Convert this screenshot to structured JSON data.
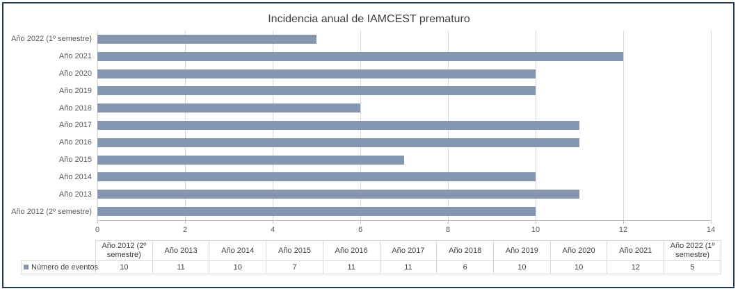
{
  "chart_data": {
    "type": "bar",
    "orientation": "horizontal",
    "title": "Incidencia anual de IAMCEST prematuro",
    "categories": [
      "Año 2012 (2º semestre)",
      "Año 2013",
      "Año 2014",
      "Año 2015",
      "Año 2016",
      "Año 2017",
      "Año 2018",
      "Año 2019",
      "Año 2020",
      "Año 2021",
      "Año 2022 (1º semestre)"
    ],
    "series": [
      {
        "name": "Número de eventos",
        "values": [
          10,
          11,
          10,
          7,
          11,
          11,
          6,
          10,
          10,
          12,
          5
        ]
      }
    ],
    "xlim": [
      0,
      14
    ],
    "x_ticks": [
      0,
      2,
      4,
      6,
      8,
      10,
      12,
      14
    ],
    "grid": true,
    "category_order_on_chart": "bottom-to-top",
    "legend_position": "data-table-row-label",
    "data_table_shown": true
  },
  "colors": {
    "frame_border": "#1F3A56",
    "bar": "#8496B0",
    "gridline": "#D9D9D9",
    "axis_line": "#BFBFBF",
    "axis_text": "#595959",
    "table_text": "#404040",
    "table_border": "#D9D9D9",
    "background": "#FFFFFF"
  }
}
